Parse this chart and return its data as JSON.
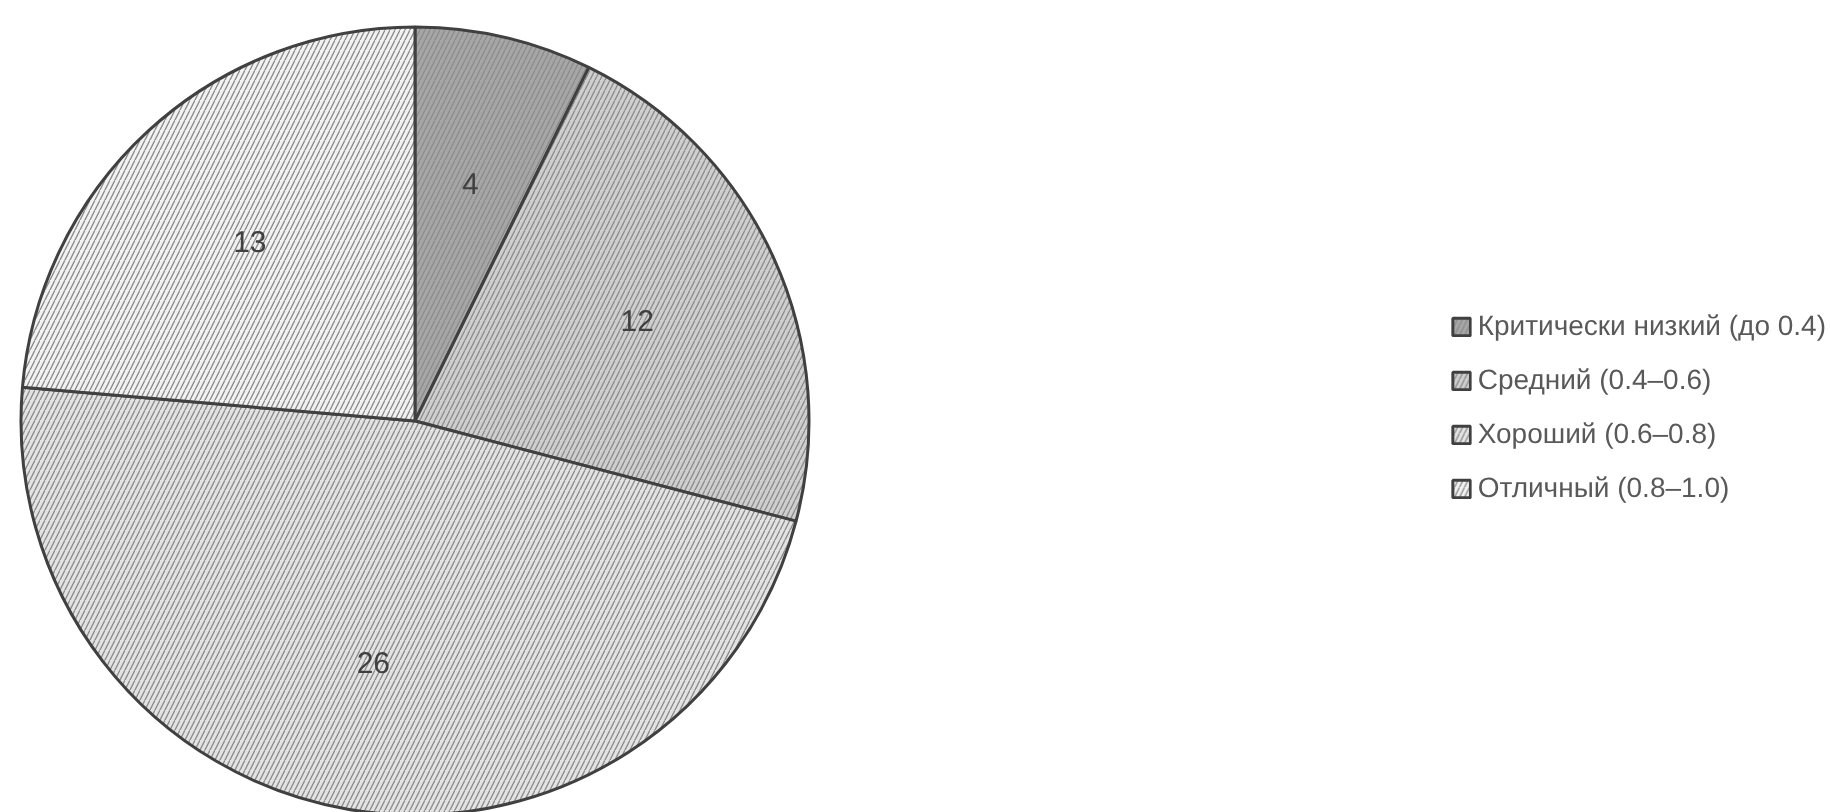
{
  "chart_data": {
    "type": "pie",
    "categories": [
      "Критически низкий (до 0.4)",
      "Средний (0.4–0.6)",
      "Хороший (0.6–0.8)",
      "Отличный (0.8–1.0)"
    ],
    "values": [
      4,
      12,
      26,
      13
    ],
    "colors": [
      "#a6a6a6",
      "#cfcfcf",
      "#e3e3e3",
      "#f2f2f2"
    ],
    "data_labels": true,
    "legend": "right"
  }
}
